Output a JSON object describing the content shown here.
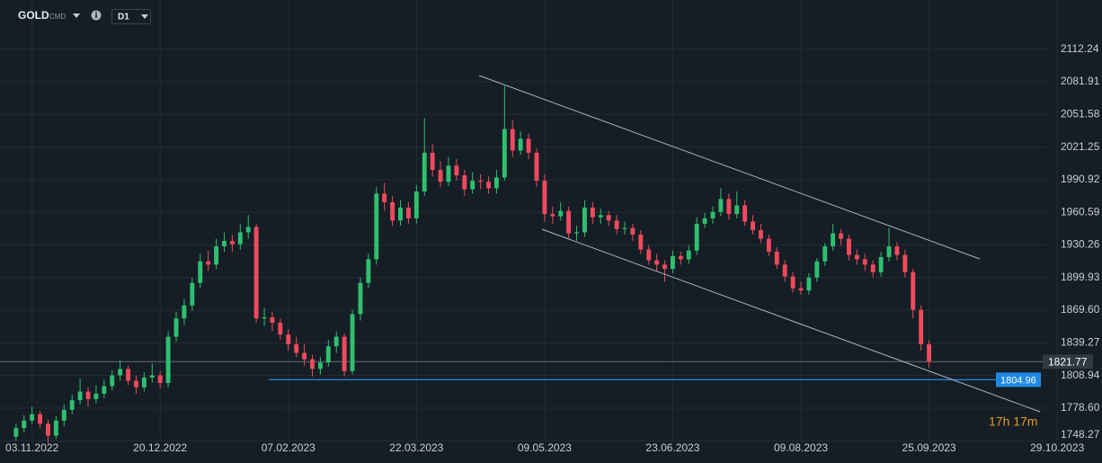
{
  "chart_data": {
    "type": "candlestick",
    "symbol": "GOLD",
    "symbol_tag": "CMD",
    "timeframe": "D1",
    "timer": "17h 17m",
    "up_color": "#2fbf71",
    "down_color": "#ef4a5d",
    "grid": true,
    "ylim": [
      1746.8,
      2158.0
    ],
    "yticks": [
      2112.24,
      2081.91,
      2051.58,
      2021.25,
      1990.92,
      1960.59,
      1930.26,
      {
        "value": 1899.93,
        "label": "1899.93"
      },
      {
        "value": 1869.6,
        "label": "1869.60"
      },
      1839.27,
      1808.94,
      {
        "value": 1778.6,
        "label": "1778.60"
      },
      1748.27
    ],
    "xlim": [
      -2,
      135
    ],
    "xticks": [
      {
        "value": 2,
        "label": "03.11.2022"
      },
      {
        "value": 18,
        "label": "20.12.2022"
      },
      {
        "value": 34,
        "label": "07.02.2023"
      },
      {
        "value": 50,
        "label": "22.03.2023"
      },
      {
        "value": 66,
        "label": "09.05.2023"
      },
      {
        "value": 82,
        "label": "23.06.2023"
      },
      {
        "value": 98,
        "label": "09.08.2023"
      },
      {
        "value": 114,
        "label": "25.09.2023"
      },
      {
        "value": 130,
        "label": "29.10.2023"
      }
    ],
    "last_price": 1821.77,
    "level": 1804.96,
    "candles": [
      [
        1752,
        1764,
        1748,
        1760
      ],
      [
        1760,
        1772,
        1756,
        1767
      ],
      [
        1767,
        1780,
        1764,
        1773
      ],
      [
        1773,
        1776,
        1760,
        1764
      ],
      [
        1764,
        1768,
        1746,
        1753
      ],
      [
        1753,
        1771,
        1750,
        1767
      ],
      [
        1767,
        1782,
        1762,
        1777
      ],
      [
        1777,
        1791,
        1773,
        1786
      ],
      [
        1786,
        1806,
        1782,
        1794
      ],
      [
        1794,
        1798,
        1780,
        1787
      ],
      [
        1787,
        1800,
        1783,
        1792
      ],
      [
        1792,
        1805,
        1788,
        1799
      ],
      [
        1799,
        1814,
        1795,
        1809
      ],
      [
        1809,
        1823,
        1804,
        1815
      ],
      [
        1815,
        1818,
        1800,
        1804
      ],
      [
        1804,
        1809,
        1792,
        1798
      ],
      [
        1798,
        1812,
        1794,
        1807
      ],
      [
        1807,
        1820,
        1802,
        1809
      ],
      [
        1809,
        1813,
        1797,
        1802
      ],
      [
        1802,
        1850,
        1798,
        1845
      ],
      [
        1845,
        1868,
        1840,
        1862
      ],
      [
        1862,
        1880,
        1856,
        1874
      ],
      [
        1874,
        1900,
        1869,
        1895
      ],
      [
        1895,
        1922,
        1890,
        1915
      ],
      [
        1915,
        1925,
        1906,
        1912
      ],
      [
        1912,
        1936,
        1908,
        1929
      ],
      [
        1929,
        1942,
        1924,
        1934
      ],
      [
        1934,
        1940,
        1924,
        1931
      ],
      [
        1931,
        1950,
        1926,
        1942
      ],
      [
        1942,
        1958,
        1936,
        1947
      ],
      [
        1947,
        1950,
        1858,
        1862
      ],
      [
        1862,
        1872,
        1855,
        1863
      ],
      [
        1863,
        1868,
        1850,
        1858
      ],
      [
        1858,
        1862,
        1842,
        1847
      ],
      [
        1847,
        1852,
        1832,
        1838
      ],
      [
        1838,
        1845,
        1826,
        1830
      ],
      [
        1830,
        1838,
        1818,
        1824
      ],
      [
        1824,
        1828,
        1808,
        1815
      ],
      [
        1815,
        1826,
        1810,
        1821
      ],
      [
        1821,
        1842,
        1817,
        1836
      ],
      [
        1836,
        1850,
        1830,
        1845
      ],
      [
        1845,
        1848,
        1808,
        1813
      ],
      [
        1813,
        1870,
        1810,
        1866
      ],
      [
        1866,
        1900,
        1860,
        1895
      ],
      [
        1895,
        1922,
        1890,
        1917
      ],
      [
        1917,
        1984,
        1912,
        1978
      ],
      [
        1978,
        1988,
        1962,
        1970
      ],
      [
        1970,
        1976,
        1948,
        1953
      ],
      [
        1953,
        1972,
        1948,
        1965
      ],
      [
        1965,
        1970,
        1950,
        1955
      ],
      [
        1955,
        1986,
        1950,
        1980
      ],
      [
        1980,
        2048,
        1976,
        2016
      ],
      [
        2016,
        2024,
        1994,
        2000
      ],
      [
        2000,
        2008,
        1984,
        1989
      ],
      [
        1989,
        2012,
        1985,
        2004
      ],
      [
        2004,
        2010,
        1990,
        1995
      ],
      [
        1995,
        2000,
        1976,
        1982
      ],
      [
        1982,
        1998,
        1978,
        1990
      ],
      [
        1990,
        1996,
        1982,
        1989
      ],
      [
        1989,
        1994,
        1978,
        1983
      ],
      [
        1983,
        2000,
        1978,
        1993
      ],
      [
        1993,
        2078,
        1990,
        2038
      ],
      [
        2038,
        2046,
        2012,
        2018
      ],
      [
        2018,
        2036,
        2014,
        2029
      ],
      [
        2029,
        2034,
        2010,
        2016
      ],
      [
        2016,
        2020,
        1984,
        1990
      ],
      [
        1990,
        1996,
        1952,
        1959
      ],
      [
        1959,
        1966,
        1950,
        1957
      ],
      [
        1957,
        1970,
        1953,
        1962
      ],
      [
        1962,
        1966,
        1936,
        1941
      ],
      [
        1941,
        1948,
        1934,
        1942
      ],
      [
        1942,
        1972,
        1938,
        1965
      ],
      [
        1965,
        1970,
        1950,
        1956
      ],
      [
        1956,
        1964,
        1950,
        1958
      ],
      [
        1958,
        1962,
        1948,
        1953
      ],
      [
        1953,
        1958,
        1940,
        1945
      ],
      [
        1945,
        1952,
        1940,
        1946
      ],
      [
        1946,
        1950,
        1934,
        1940
      ],
      [
        1940,
        1944,
        1922,
        1926
      ],
      [
        1926,
        1930,
        1912,
        1916
      ],
      [
        1916,
        1922,
        1906,
        1912
      ],
      [
        1912,
        1916,
        1896,
        1908
      ],
      [
        1908,
        1925,
        1904,
        1920
      ],
      [
        1920,
        1924,
        1912,
        1917
      ],
      [
        1917,
        1930,
        1913,
        1925
      ],
      [
        1925,
        1956,
        1921,
        1950
      ],
      [
        1950,
        1960,
        1946,
        1955
      ],
      [
        1955,
        1966,
        1950,
        1961
      ],
      [
        1961,
        1983,
        1957,
        1973
      ],
      [
        1973,
        1978,
        1954,
        1959
      ],
      [
        1959,
        1980,
        1955,
        1967
      ],
      [
        1967,
        1972,
        1948,
        1952
      ],
      [
        1952,
        1958,
        1940,
        1944
      ],
      [
        1944,
        1950,
        1932,
        1936
      ],
      [
        1936,
        1940,
        1920,
        1924
      ],
      [
        1924,
        1928,
        1908,
        1912
      ],
      [
        1912,
        1916,
        1896,
        1901
      ],
      [
        1901,
        1905,
        1886,
        1890
      ],
      [
        1890,
        1896,
        1884,
        1888
      ],
      [
        1888,
        1904,
        1884,
        1900
      ],
      [
        1900,
        1918,
        1896,
        1915
      ],
      [
        1915,
        1932,
        1911,
        1929
      ],
      [
        1929,
        1950,
        1925,
        1941
      ],
      [
        1941,
        1945,
        1930,
        1936
      ],
      [
        1936,
        1940,
        1916,
        1921
      ],
      [
        1921,
        1926,
        1912,
        1917
      ],
      [
        1917,
        1922,
        1906,
        1912
      ],
      [
        1912,
        1916,
        1900,
        1905
      ],
      [
        1905,
        1924,
        1901,
        1919
      ],
      [
        1919,
        1946,
        1915,
        1929
      ],
      [
        1929,
        1933,
        1916,
        1921
      ],
      [
        1921,
        1926,
        1900,
        1905
      ],
      [
        1905,
        1908,
        1862,
        1870
      ],
      [
        1870,
        1874,
        1832,
        1838
      ],
      [
        1838,
        1842,
        1816,
        1821.77
      ]
    ]
  }
}
